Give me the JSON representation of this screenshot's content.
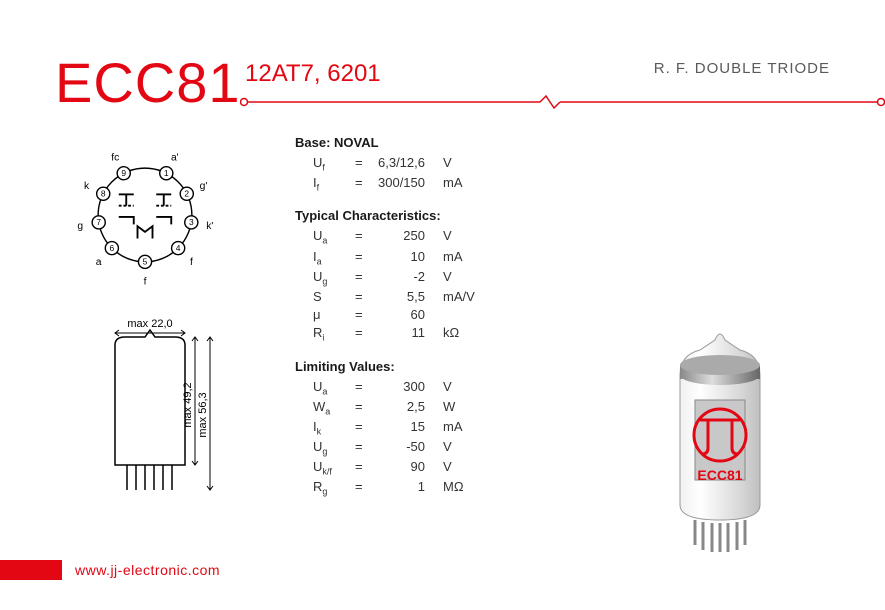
{
  "header": {
    "model": "ECC81",
    "aliases": "12AT7, 6201",
    "subtitle": "R. F. DOUBLE TRIODE",
    "accent_color": "#e30613"
  },
  "pinout": {
    "outer_radius": 50,
    "pin_radius": 7,
    "pins": [
      {
        "n": "1",
        "angle": 63,
        "label": "a'"
      },
      {
        "n": "2",
        "angle": 27,
        "label": "g'"
      },
      {
        "n": "3",
        "angle": -9,
        "label": "k'"
      },
      {
        "n": "4",
        "angle": -45,
        "label": "f"
      },
      {
        "n": "5",
        "angle": -90,
        "label": "f"
      },
      {
        "n": "6",
        "angle": -135,
        "label": "a"
      },
      {
        "n": "7",
        "angle": -171,
        "label": "g"
      },
      {
        "n": "8",
        "angle": 153,
        "label": "k"
      },
      {
        "n": "9",
        "angle": 117,
        "label": "fc"
      }
    ]
  },
  "dimensions": {
    "width_label": "max 22,0",
    "height_inner_label": "max 49,2",
    "height_outer_label": "max 56,3"
  },
  "specs": {
    "base": {
      "heading": "Base: NOVAL",
      "rows": [
        {
          "label": "U",
          "sub": "f",
          "val": "6,3/12,6",
          "unit": "V"
        },
        {
          "label": "I",
          "sub": "f",
          "val": "300/150",
          "unit": "mA"
        }
      ]
    },
    "typical": {
      "heading": "Typical Characteristics:",
      "rows": [
        {
          "label": "U",
          "sub": "a",
          "val": "250",
          "unit": "V"
        },
        {
          "label": "I",
          "sub": "a",
          "val": "10",
          "unit": "mA"
        },
        {
          "label": "U",
          "sub": "g",
          "val": "-2",
          "unit": "V"
        },
        {
          "label": "S",
          "sub": "",
          "val": "5,5",
          "unit": "mA/V"
        },
        {
          "label": "μ",
          "sub": "",
          "val": "60",
          "unit": ""
        },
        {
          "label": "R",
          "sub": "i",
          "val": "11",
          "unit": "kΩ"
        }
      ]
    },
    "limiting": {
      "heading": "Limiting Values:",
      "rows": [
        {
          "label": "U",
          "sub": "a",
          "val": "300",
          "unit": "V"
        },
        {
          "label": "W",
          "sub": "a",
          "val": "2,5",
          "unit": "W"
        },
        {
          "label": "I",
          "sub": "k",
          "val": "15",
          "unit": "mA"
        },
        {
          "label": "U",
          "sub": "g",
          "val": "-50",
          "unit": "V"
        },
        {
          "label": "U",
          "sub": "k/f",
          "val": "90",
          "unit": "V"
        },
        {
          "label": "R",
          "sub": "g",
          "val": "1",
          "unit": "MΩ"
        }
      ]
    }
  },
  "tube_label": "ECC81",
  "footer": {
    "url": "www.jj-electronic.com"
  }
}
